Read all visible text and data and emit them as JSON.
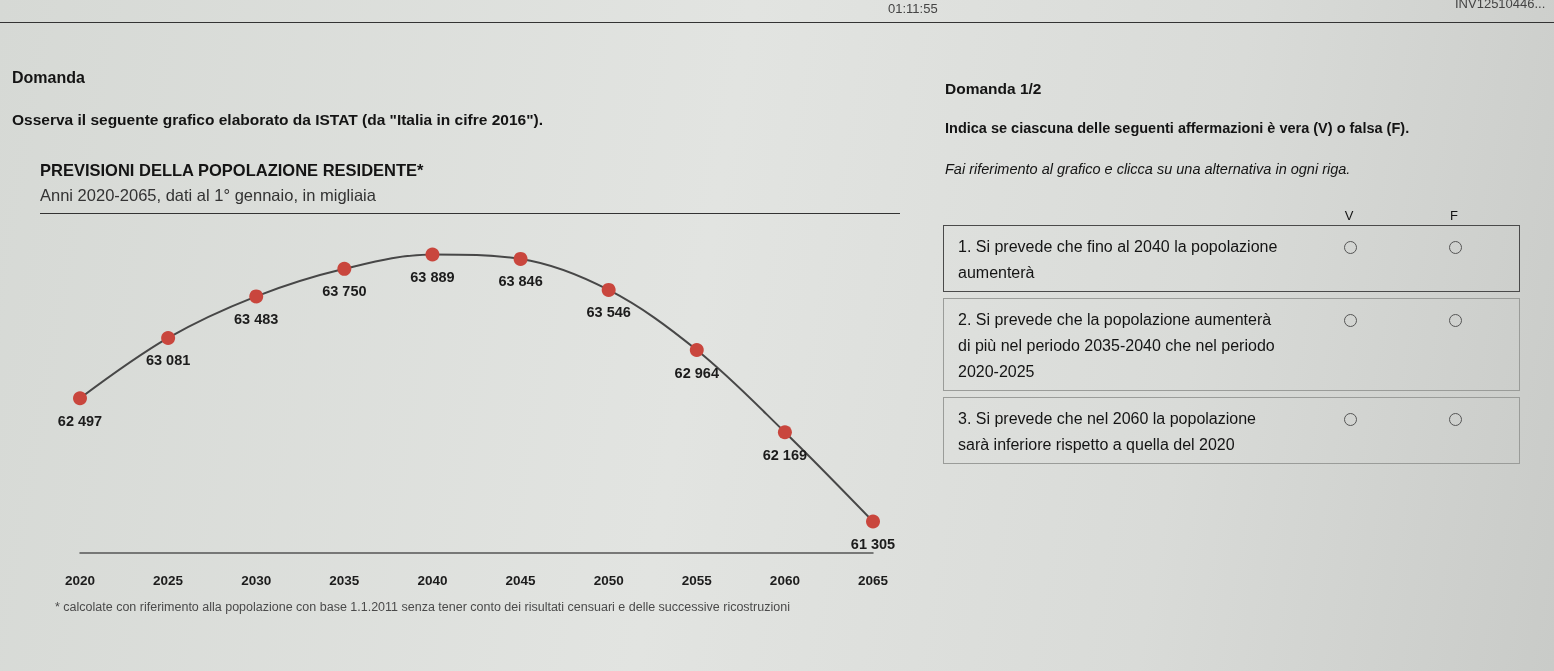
{
  "chart_data": [
    {
      "type": "other",
      "title": "Domanda",
      "subtitle": "Osserva il seguente grafico elaborato da ISTAT (da \"Italia in cifre 2016\").",
      "annotations": [
        "01:11:55",
        "INV12510446..."
      ]
    },
    {
      "type": "line",
      "title": "PREVISIONI DELLA POPOLAZIONE RESIDENTE*",
      "subtitle": "Anni 2020-2065, dati al 1° gennaio, in migliaia",
      "categories": [
        "2020",
        "2025",
        "2030",
        "2035",
        "2040",
        "2045",
        "2050",
        "2055",
        "2060",
        "2065"
      ],
      "series": [
        {
          "color": "#474747",
          "colors": [
            "#c9463d",
            "#c9463d",
            "#c9463d",
            "#c9463d",
            "#c9463d",
            "#c9463d",
            "#c9463d",
            "#c9463d",
            "#c9463d",
            "#c9463d"
          ],
          "values": [
            62497,
            63081,
            63483,
            63750,
            63889,
            63846,
            63546,
            62964,
            62169,
            61305
          ],
          "value_labels": [
            "62 497",
            "63 081",
            "63 483",
            "63 750",
            "63 889",
            "63 846",
            "63 546",
            "62 964",
            "62 169",
            "61 305"
          ]
        }
      ],
      "marker": "circle",
      "annotations": [
        "* calcolate con riferimento alla popolazione con base 1.1.2011 senza tener conto dei risultati censuari e delle successive ricostruzioni"
      ]
    },
    {
      "type": "other",
      "title": "Domanda 1/2",
      "subtitle": "Indica se ciascuna delle seguenti affermazioni è vera (V) o falsa (F).",
      "annotations": [
        "Fai riferimento al grafico e clicca su una alternativa in ogni riga.",
        "V",
        "F",
        "1. Si prevede che fino al 2040 la popolazione aumenterà",
        "2. Si prevede che la popolazione aumenterà di più nel periodo 2035-2040 che nel periodo 2020-2025",
        "3. Si prevede che nel 2060 la popolazione sarà inferiore rispetto a quella del 2020"
      ]
    }
  ]
}
